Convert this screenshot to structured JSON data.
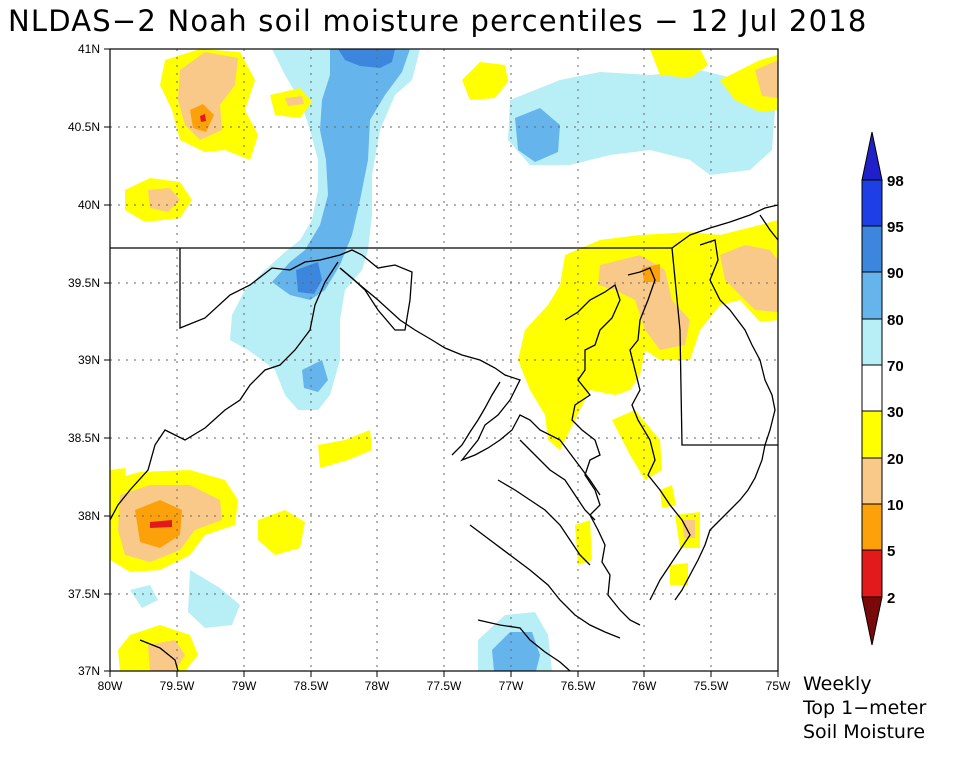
{
  "title": "NLDAS−2 Noah soil moisture percentiles − 12 Jul 2018",
  "map": {
    "lat_labels": [
      "41N",
      "40.5N",
      "40N",
      "39.5N",
      "39N",
      "38.5N",
      "38N",
      "37.5N",
      "37N"
    ],
    "lon_labels": [
      "80W",
      "79.5W",
      "79W",
      "78.5W",
      "78W",
      "77.5W",
      "77W",
      "76.5W",
      "76W",
      "75.5W",
      "75W"
    ],
    "lat_range": [
      37,
      41
    ],
    "lon_range": [
      -80,
      -75
    ],
    "grid": "dotted"
  },
  "colorbar": {
    "labels": [
      "98",
      "95",
      "90",
      "80",
      "70",
      "30",
      "20",
      "10",
      "5",
      "2"
    ],
    "colors": [
      "#2020c8",
      "#1f3fe6",
      "#3c86dd",
      "#66b4ec",
      "#b8eef5",
      "#ffffff",
      "#ffff00",
      "#f9c98a",
      "#fda10a",
      "#e31a1c",
      "#7a0a0a"
    ]
  },
  "caption": {
    "line1": "Weekly",
    "line2": "Top 1−meter",
    "line3": "Soil Moisture"
  }
}
